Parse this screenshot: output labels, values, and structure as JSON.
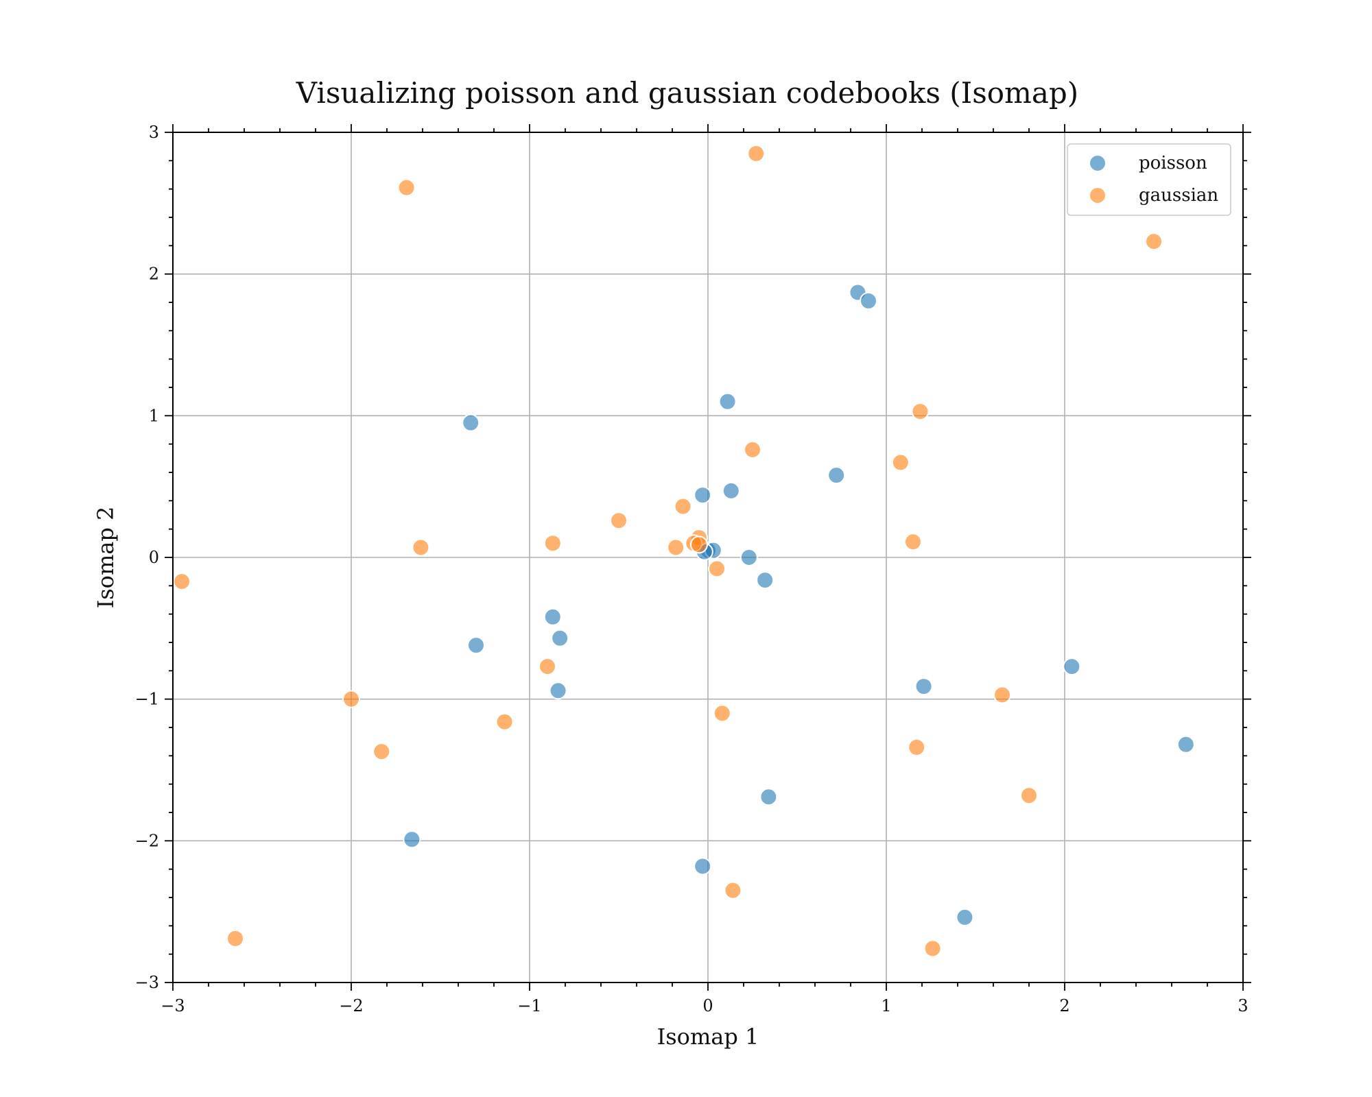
{
  "chart_data": {
    "type": "scatter",
    "title": "Visualizing poisson and gaussian codebooks (Isomap)",
    "xlabel": "Isomap 1",
    "ylabel": "Isomap 2",
    "xlim": [
      -3,
      3
    ],
    "ylim": [
      -3,
      3
    ],
    "xticks": [
      -3,
      -2,
      -1,
      0,
      1,
      2,
      3
    ],
    "yticks": [
      -3,
      -2,
      -1,
      0,
      1,
      2,
      3
    ],
    "xtick_labels": [
      "−3",
      "−2",
      "−1",
      "0",
      "1",
      "2",
      "3"
    ],
    "ytick_labels": [
      "−3",
      "−2",
      "−1",
      "0",
      "1",
      "2",
      "3"
    ],
    "grid": true,
    "legend_position": "top-right",
    "series": [
      {
        "name": "poisson",
        "color": "#1f77b4",
        "points": [
          [
            0.84,
            1.87
          ],
          [
            0.9,
            1.81
          ],
          [
            0.11,
            1.1
          ],
          [
            -1.33,
            0.95
          ],
          [
            0.72,
            0.58
          ],
          [
            -0.03,
            0.44
          ],
          [
            0.13,
            0.47
          ],
          [
            0.0,
            0.05
          ],
          [
            0.03,
            0.05
          ],
          [
            -0.02,
            0.04
          ],
          [
            0.23,
            0.0
          ],
          [
            0.32,
            -0.16
          ],
          [
            -0.87,
            -0.42
          ],
          [
            -0.83,
            -0.57
          ],
          [
            -1.3,
            -0.62
          ],
          [
            -0.84,
            -0.94
          ],
          [
            1.21,
            -0.91
          ],
          [
            2.04,
            -0.77
          ],
          [
            2.68,
            -1.32
          ],
          [
            0.34,
            -1.69
          ],
          [
            -1.66,
            -1.99
          ],
          [
            -0.03,
            -2.18
          ],
          [
            1.44,
            -2.54
          ]
        ]
      },
      {
        "name": "gaussian",
        "color": "#ff7f0e",
        "points": [
          [
            0.27,
            2.85
          ],
          [
            -1.69,
            2.61
          ],
          [
            2.5,
            2.23
          ],
          [
            1.19,
            1.03
          ],
          [
            0.25,
            0.76
          ],
          [
            1.08,
            0.67
          ],
          [
            -0.14,
            0.36
          ],
          [
            -0.5,
            0.26
          ],
          [
            -0.05,
            0.14
          ],
          [
            -0.08,
            0.1
          ],
          [
            -0.05,
            0.09
          ],
          [
            -0.87,
            0.1
          ],
          [
            1.15,
            0.11
          ],
          [
            -1.61,
            0.07
          ],
          [
            -0.18,
            0.07
          ],
          [
            0.05,
            -0.08
          ],
          [
            -2.95,
            -0.17
          ],
          [
            -0.9,
            -0.77
          ],
          [
            1.65,
            -0.97
          ],
          [
            -2.0,
            -1.0
          ],
          [
            0.08,
            -1.1
          ],
          [
            -1.14,
            -1.16
          ],
          [
            -1.83,
            -1.37
          ],
          [
            1.17,
            -1.34
          ],
          [
            1.8,
            -1.68
          ],
          [
            0.14,
            -2.35
          ],
          [
            -2.65,
            -2.69
          ],
          [
            1.26,
            -2.76
          ]
        ]
      }
    ]
  }
}
